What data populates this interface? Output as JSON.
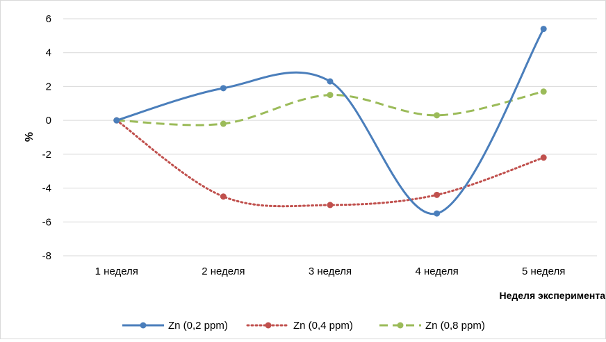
{
  "chart_data": {
    "type": "line",
    "categories": [
      "1 неделя",
      "2 неделя",
      "3 неделя",
      "4 неделя",
      "5 неделя"
    ],
    "series": [
      {
        "name": "Zn (0,2 ppm)",
        "values": [
          0,
          1.9,
          2.3,
          -5.5,
          5.4
        ],
        "color": "#4a7ebb",
        "style": "solid"
      },
      {
        "name": "Zn (0,4 ppm)",
        "values": [
          0,
          -4.5,
          -5.0,
          -4.4,
          -2.2
        ],
        "color": "#c0504d",
        "style": "dotted"
      },
      {
        "name": "Zn (0,8 ppm)",
        "values": [
          0,
          -0.2,
          1.5,
          0.3,
          1.7
        ],
        "color": "#9bbb59",
        "style": "dashed"
      }
    ],
    "ylabel": "%",
    "xlabel": "Неделя эксперимента",
    "ylim": [
      -8,
      6
    ],
    "yticks": [
      "6",
      "4",
      "2",
      "0",
      "-2",
      "-4",
      "-6",
      "-8"
    ],
    "grid": true,
    "legend_position": "bottom",
    "smooth": true
  }
}
